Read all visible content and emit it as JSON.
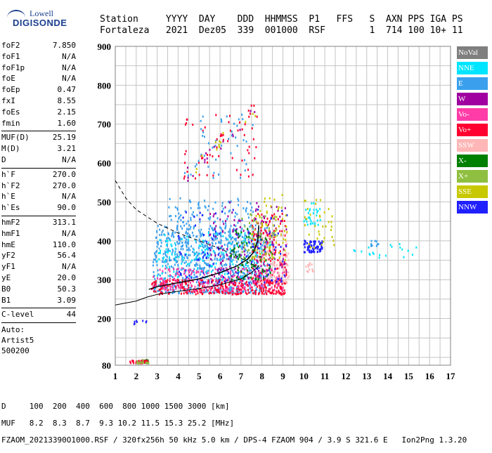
{
  "logo": {
    "line1": "Lowell",
    "line2": "DIGISONDE"
  },
  "header": {
    "labels": [
      "Station",
      "YYYY",
      "DAY",
      "DDD",
      "HHMMSS",
      "P1",
      "FFS",
      "S",
      "AXN",
      "PPS",
      "IGA",
      "PS"
    ],
    "values": [
      "Fortaleza",
      "2021",
      "Dez05",
      "339",
      "001000",
      "RSF",
      "1",
      "714",
      "100",
      "10+",
      "11"
    ]
  },
  "params": {
    "group1": [
      {
        "k": "foF2",
        "v": "7.850"
      },
      {
        "k": "foF1",
        "v": "N/A"
      },
      {
        "k": "foF1p",
        "v": "N/A"
      },
      {
        "k": "foE",
        "v": "N/A"
      },
      {
        "k": "foEp",
        "v": "0.47"
      },
      {
        "k": "fxI",
        "v": "8.55"
      },
      {
        "k": "foEs",
        "v": "2.15"
      },
      {
        "k": "fmin",
        "v": "1.60"
      }
    ],
    "group2": [
      {
        "k": "MUF(D)",
        "v": "25.19"
      },
      {
        "k": "M(D)",
        "v": "3.21"
      },
      {
        "k": "D",
        "v": "N/A"
      }
    ],
    "group3": [
      {
        "k": "h`F",
        "v": "270.0"
      },
      {
        "k": "h`F2",
        "v": "270.0"
      },
      {
        "k": "h`E",
        "v": "N/A"
      },
      {
        "k": "h`Es",
        "v": "90.0"
      }
    ],
    "group4": [
      {
        "k": "hmF2",
        "v": "313.1"
      },
      {
        "k": "hmF1",
        "v": "N/A"
      },
      {
        "k": "hmE",
        "v": "110.0"
      },
      {
        "k": "yF2",
        "v": "56.4"
      },
      {
        "k": "yF1",
        "v": "N/A"
      },
      {
        "k": "yE",
        "v": "20.0"
      },
      {
        "k": "B0",
        "v": "50.3"
      },
      {
        "k": "B1",
        "v": "3.09"
      }
    ],
    "group5": [
      {
        "k": "C-level",
        "v": "44"
      }
    ],
    "footer_lines": [
      "Auto:",
      "Artist5",
      "500200"
    ]
  },
  "legend": [
    {
      "label": "NoVal",
      "color": "#7f7f7f"
    },
    {
      "label": "NNE",
      "color": "#00e5ff"
    },
    {
      "label": "E",
      "color": "#3aa0ee"
    },
    {
      "label": "W",
      "color": "#a000a0"
    },
    {
      "label": "Vo-",
      "color": "#ff3ca8"
    },
    {
      "label": "Vo+",
      "color": "#ff0030"
    },
    {
      "label": "SSW",
      "color": "#ffb6b6"
    },
    {
      "label": "X-",
      "color": "#008000"
    },
    {
      "label": "X+",
      "color": "#8fbf40"
    },
    {
      "label": "SSE",
      "color": "#c8c800"
    },
    {
      "label": "NNW",
      "color": "#2020ff"
    }
  ],
  "bottom": {
    "line_d": "D     100  200  400  600  800 1000 1500 3000 [km]",
    "line_muf": "MUF   8.2  8.3  8.7  9.3 10.2 11.5 15.3 25.2 [MHz]",
    "line_file": "FZAOM_20213390O1000.RSF / 320fx256h 50 kHz 5.0 km / DPS-4 FZAOM 904 / 3.9 S 321.6 E   Ion2Png 1.3.20"
  },
  "chart_data": {
    "type": "scatter",
    "xlim": [
      1,
      17
    ],
    "ylim": [
      80,
      900
    ],
    "x_ticks": [
      1,
      2,
      3,
      4,
      5,
      6,
      7,
      8,
      9,
      10,
      11,
      12,
      13,
      14,
      15,
      16,
      17
    ],
    "y_ticks": [
      80,
      200,
      300,
      400,
      500,
      600,
      700,
      800,
      900
    ],
    "grid": true,
    "profile_curve": {
      "x": [
        2.4,
        3.0,
        4.0,
        5.0,
        6.0,
        7.0,
        7.5,
        7.85
      ],
      "y": [
        270,
        282,
        293,
        305,
        318,
        338,
        353,
        370
      ]
    },
    "virtual_trace": {
      "x": [
        2.6,
        3.0,
        4.0,
        5.0,
        6.0,
        6.8,
        7.3,
        7.6,
        7.8,
        7.85
      ],
      "y": [
        275,
        282,
        292,
        302,
        318,
        335,
        352,
        370,
        400,
        440
      ]
    },
    "lower_solid_curve": {
      "x": [
        1.0,
        2.0,
        2.5,
        3.0,
        4.0,
        5.0,
        6.0,
        7.0,
        7.5,
        7.85
      ],
      "y": [
        235,
        245,
        255,
        262,
        270,
        277,
        287,
        302,
        318,
        335
      ]
    },
    "upper_dashed_curve": {
      "x": [
        1.0,
        1.5,
        2.0,
        3.0,
        4.0,
        5.0,
        6.0,
        7.0,
        7.5,
        7.85
      ],
      "y": [
        555,
        510,
        480,
        445,
        420,
        400,
        380,
        355,
        340,
        335
      ]
    },
    "clusters": [
      {
        "name": "E",
        "x": [
          2.8,
          8.3
        ],
        "y": [
          265,
          440
        ],
        "n": 700,
        "color": "#3aa0ee"
      },
      {
        "name": "E",
        "x": [
          3.4,
          7.6
        ],
        "y": [
          350,
          510
        ],
        "n": 220,
        "color": "#3aa0ee"
      },
      {
        "name": "NNE",
        "x": [
          3.0,
          8.5
        ],
        "y": [
          300,
          420
        ],
        "n": 160,
        "color": "#00e5ff"
      },
      {
        "name": "Vo+",
        "x": [
          2.7,
          9.1
        ],
        "y": [
          262,
          300
        ],
        "n": 320,
        "color": "#ff0030"
      },
      {
        "name": "Vo+",
        "x": [
          7.5,
          9.2
        ],
        "y": [
          290,
          470
        ],
        "n": 150,
        "color": "#ff0030"
      },
      {
        "name": "Vo-",
        "x": [
          2.8,
          9.0
        ],
        "y": [
          270,
          330
        ],
        "n": 200,
        "color": "#ff3ca8"
      },
      {
        "name": "SSW",
        "x": [
          7.8,
          9.3
        ],
        "y": [
          290,
          420
        ],
        "n": 120,
        "color": "#ffb6b6"
      },
      {
        "name": "W",
        "x": [
          5.5,
          9.2
        ],
        "y": [
          290,
          500
        ],
        "n": 150,
        "color": "#a000a0"
      },
      {
        "name": "NNW",
        "x": [
          4.0,
          9.2
        ],
        "y": [
          290,
          480
        ],
        "n": 110,
        "color": "#2020ff"
      },
      {
        "name": "X-",
        "x": [
          6.5,
          8.5
        ],
        "y": [
          300,
          440
        ],
        "n": 70,
        "color": "#008000"
      },
      {
        "name": "X+",
        "x": [
          7.0,
          8.8
        ],
        "y": [
          350,
          470
        ],
        "n": 50,
        "color": "#8fbf40"
      },
      {
        "name": "SSE",
        "x": [
          7.5,
          9.2
        ],
        "y": [
          350,
          520
        ],
        "n": 60,
        "color": "#c8c800"
      },
      {
        "name": "Vo+",
        "x": [
          4.2,
          7.9
        ],
        "y": [
          560,
          740
        ],
        "n": 45,
        "color": "#ff0030"
      },
      {
        "name": "E",
        "x": [
          4.8,
          7.6
        ],
        "y": [
          560,
          720
        ],
        "n": 35,
        "color": "#3aa0ee"
      },
      {
        "name": "NNW",
        "x": [
          10.0,
          10.9
        ],
        "y": [
          370,
          400
        ],
        "n": 70,
        "color": "#2020ff"
      },
      {
        "name": "NNE",
        "x": [
          10.0,
          10.8
        ],
        "y": [
          440,
          500
        ],
        "n": 30,
        "color": "#00e5ff"
      },
      {
        "name": "SSE",
        "x": [
          10.0,
          11.5
        ],
        "y": [
          380,
          505
        ],
        "n": 35,
        "color": "#c8c800"
      },
      {
        "name": "SSW",
        "x": [
          10.1,
          10.5
        ],
        "y": [
          320,
          345
        ],
        "n": 12,
        "color": "#ffb6b6"
      },
      {
        "name": "NNE",
        "x": [
          12.3,
          15.4
        ],
        "y": [
          355,
          400
        ],
        "n": 20,
        "color": "#00e5ff"
      },
      {
        "name": "E",
        "x": [
          13.2,
          13.6
        ],
        "y": [
          385,
          400
        ],
        "n": 10,
        "color": "#3aa0ee"
      },
      {
        "name": "X-",
        "x": [
          2.3,
          2.6
        ],
        "y": [
          86,
          93
        ],
        "n": 30,
        "color": "#008000"
      },
      {
        "name": "Vo+",
        "x": [
          1.7,
          2.6
        ],
        "y": [
          85,
          92
        ],
        "n": 40,
        "color": "#ff0030"
      },
      {
        "name": "NNW",
        "x": [
          1.9,
          2.5
        ],
        "y": [
          185,
          195
        ],
        "n": 8,
        "color": "#2020ff"
      },
      {
        "name": "X+",
        "x": [
          2.0,
          2.6
        ],
        "y": [
          84,
          93
        ],
        "n": 15,
        "color": "#8fbf40"
      }
    ]
  }
}
